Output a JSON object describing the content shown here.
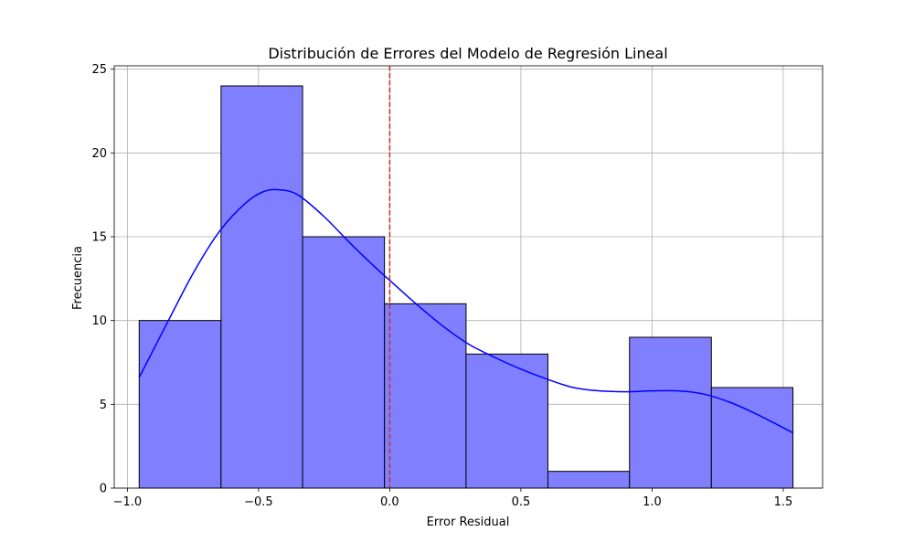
{
  "chart_data": {
    "type": "bar",
    "subtype": "histogram",
    "title": "Distribución de Errores del Modelo de Regresión Lineal",
    "xlabel": "Error Residual",
    "ylabel": "Frecuencia",
    "xlim": [
      -1.05,
      1.65
    ],
    "ylim": [
      0,
      25.2
    ],
    "grid": true,
    "bin_edges": [
      -0.955,
      -0.643,
      -0.332,
      -0.02,
      0.291,
      0.603,
      0.914,
      1.226,
      1.537
    ],
    "counts": [
      10,
      24,
      15,
      11,
      8,
      1,
      9,
      6
    ],
    "x_ticks": [
      -1.0,
      -0.5,
      0.0,
      0.5,
      1.0,
      1.5
    ],
    "x_tick_labels": [
      "−1.0",
      "−0.5",
      "0.0",
      "0.5",
      "1.0",
      "1.5"
    ],
    "y_ticks": [
      0,
      5,
      10,
      15,
      20,
      25
    ],
    "y_tick_labels": [
      "0",
      "5",
      "10",
      "15",
      "20",
      "25"
    ],
    "kde": {
      "x": [
        -0.955,
        -0.85,
        -0.75,
        -0.65,
        -0.55,
        -0.48,
        -0.42,
        -0.35,
        -0.25,
        -0.15,
        -0.05,
        0.0,
        0.1,
        0.2,
        0.3,
        0.4,
        0.5,
        0.6,
        0.7,
        0.8,
        0.9,
        1.0,
        1.1,
        1.2,
        1.3,
        1.4,
        1.537
      ],
      "y": [
        6.6,
        9.8,
        12.8,
        15.3,
        17.0,
        17.7,
        17.8,
        17.5,
        16.2,
        14.6,
        13.1,
        12.4,
        11.0,
        9.7,
        8.6,
        7.8,
        7.1,
        6.5,
        6.0,
        5.8,
        5.75,
        5.8,
        5.8,
        5.6,
        5.1,
        4.4,
        3.3
      ]
    },
    "vline": {
      "x": 0.0,
      "style": "dashed"
    },
    "colors": {
      "bar_fill": "#8080ff",
      "bar_edge": "#000000",
      "kde": "#0000ff",
      "vline": "#d62728",
      "grid": "#b0b0b0"
    }
  }
}
